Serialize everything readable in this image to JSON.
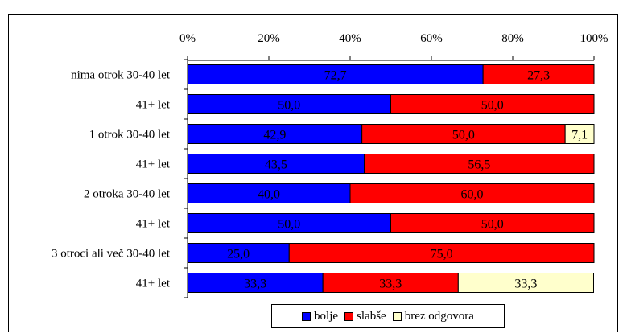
{
  "chart_data": {
    "type": "bar",
    "orientation": "horizontal",
    "stacked": true,
    "title": "",
    "xlim": [
      0,
      100
    ],
    "ticks": [
      "0%",
      "20%",
      "40%",
      "60%",
      "80%",
      "100%"
    ],
    "tick_values": [
      0,
      20,
      40,
      60,
      80,
      100
    ],
    "axis_position": "top",
    "grid": false,
    "legend_position": "bottom",
    "categories": [
      "nima otrok 30-40 let",
      "41+ let",
      "1 otrok 30-40 let",
      "41+ let",
      "2 otroka 30-40 let",
      "41+ let",
      "3 otroci ali več 30-40 let",
      "41+ let"
    ],
    "series": [
      {
        "name": "bolje",
        "color": "#0000ff",
        "values": [
          72.7,
          50.0,
          42.9,
          43.5,
          40.0,
          50.0,
          25.0,
          33.3
        ],
        "labels": [
          "72,7",
          "50,0",
          "42,9",
          "43,5",
          "40,0",
          "50,0",
          "25,0",
          "33,3"
        ]
      },
      {
        "name": "slabše",
        "color": "#ff0000",
        "values": [
          27.3,
          50.0,
          50.0,
          56.5,
          60.0,
          50.0,
          75.0,
          33.3
        ],
        "labels": [
          "27,3",
          "50,0",
          "50,0",
          "56,5",
          "60,0",
          "50,0",
          "75,0",
          "33,3"
        ]
      },
      {
        "name": "brez odgovora",
        "color": "#ffffcc",
        "values": [
          0,
          0,
          7.1,
          0,
          0,
          0,
          0,
          33.3
        ],
        "labels": [
          "",
          "",
          "7,1",
          "",
          "",
          "",
          "",
          "33,3"
        ]
      }
    ]
  }
}
